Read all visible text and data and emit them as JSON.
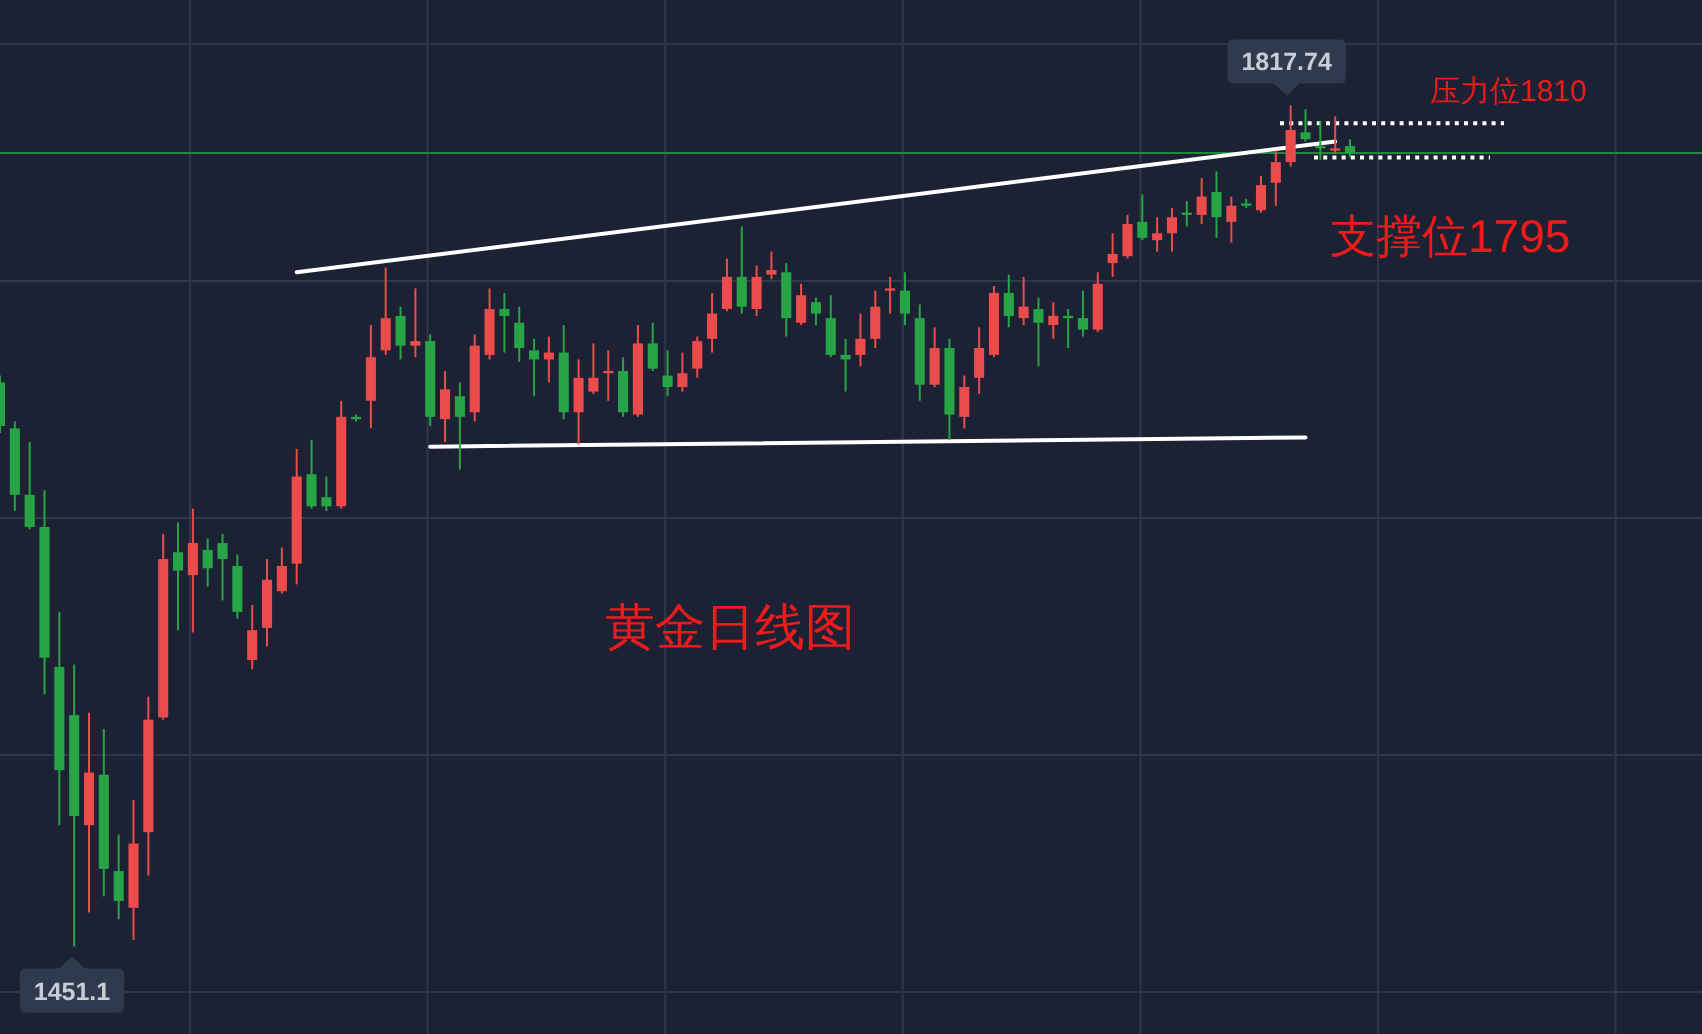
{
  "chart_data": {
    "type": "candlestick",
    "title": "黄金日线图",
    "categories": [
      null,
      null,
      null,
      null,
      null,
      null,
      null,
      null,
      null,
      null,
      null,
      null,
      null,
      null,
      null,
      null,
      null,
      null,
      null,
      null,
      null,
      null,
      null,
      null,
      null,
      null,
      null,
      null,
      null,
      null,
      null,
      null,
      null,
      null,
      null,
      null,
      null,
      null,
      null,
      null,
      null,
      null,
      null,
      null,
      null,
      null,
      null,
      null,
      null,
      null,
      null,
      null,
      null,
      null,
      null,
      null,
      null,
      null,
      null,
      null,
      null,
      null,
      null,
      null,
      null,
      null,
      null,
      null,
      null,
      null,
      null,
      null,
      null,
      null,
      null,
      null,
      null,
      null,
      null,
      null,
      null,
      null,
      null,
      null,
      null,
      null,
      null,
      null,
      null,
      null,
      null,
      null
    ],
    "ohlc": [
      [
        1697,
        1700,
        1675,
        1678
      ],
      [
        1677,
        1680,
        1641,
        1648
      ],
      [
        1648,
        1671,
        1633,
        1634
      ],
      [
        1634,
        1650,
        1561,
        1577
      ],
      [
        1573,
        1597,
        1504,
        1528
      ],
      [
        1552,
        1574,
        1451.1,
        1508
      ],
      [
        1504,
        1553,
        1466,
        1527
      ],
      [
        1526,
        1546,
        1473,
        1485
      ],
      [
        1484,
        1500,
        1463,
        1471
      ],
      [
        1468,
        1515,
        1454,
        1496
      ],
      [
        1501,
        1560,
        1482,
        1550
      ],
      [
        1551,
        1631,
        1550,
        1620
      ],
      [
        1623,
        1636,
        1589,
        1615
      ],
      [
        1613,
        1642,
        1588,
        1627
      ],
      [
        1624,
        1629,
        1608,
        1616
      ],
      [
        1627,
        1631,
        1602,
        1620
      ],
      [
        1617,
        1622,
        1594,
        1597
      ],
      [
        1576,
        1600,
        1572,
        1589
      ],
      [
        1590,
        1620,
        1582,
        1611
      ],
      [
        1606,
        1625,
        1605,
        1617
      ],
      [
        1618,
        1668,
        1609,
        1656
      ],
      [
        1657,
        1672,
        1642,
        1643
      ],
      [
        1647,
        1656,
        1641,
        1643
      ],
      [
        1643,
        1689,
        1642,
        1682
      ],
      [
        1682,
        1683,
        1680,
        1681
      ],
      [
        1689,
        1722,
        1677,
        1708
      ],
      [
        1711,
        1747,
        1709,
        1725
      ],
      [
        1726,
        1730,
        1707,
        1713
      ],
      [
        1713,
        1738,
        1708,
        1715
      ],
      [
        1715,
        1718,
        1678,
        1682
      ],
      [
        1681,
        1702,
        1671,
        1694
      ],
      [
        1691,
        1697,
        1659,
        1682
      ],
      [
        1684,
        1718,
        1680,
        1713
      ],
      [
        1709,
        1738,
        1707,
        1729
      ],
      [
        1729,
        1736,
        1710,
        1726
      ],
      [
        1723,
        1730,
        1706,
        1712
      ],
      [
        1711,
        1716,
        1691,
        1707
      ],
      [
        1707,
        1717,
        1697,
        1710
      ],
      [
        1710,
        1722,
        1681,
        1684
      ],
      [
        1684,
        1707,
        1670,
        1699
      ],
      [
        1693,
        1714,
        1692,
        1699
      ],
      [
        1701,
        1711,
        1689,
        1702
      ],
      [
        1702,
        1708,
        1682,
        1684
      ],
      [
        1683,
        1722,
        1682,
        1714
      ],
      [
        1714,
        1723,
        1702,
        1703
      ],
      [
        1700,
        1711,
        1691,
        1695
      ],
      [
        1695,
        1710,
        1693,
        1701
      ],
      [
        1703,
        1717,
        1699,
        1715
      ],
      [
        1716,
        1736,
        1710,
        1727
      ],
      [
        1729,
        1751,
        1728,
        1743
      ],
      [
        1743,
        1765,
        1727,
        1730
      ],
      [
        1729,
        1748,
        1726,
        1743
      ],
      [
        1744,
        1754,
        1742,
        1746
      ],
      [
        1745,
        1749,
        1717,
        1725
      ],
      [
        1723,
        1740,
        1722,
        1735
      ],
      [
        1732,
        1734,
        1722,
        1727
      ],
      [
        1725,
        1735,
        1708,
        1709
      ],
      [
        1709,
        1716,
        1693,
        1707
      ],
      [
        1709,
        1727,
        1704,
        1716
      ],
      [
        1716,
        1737,
        1712,
        1730
      ],
      [
        1737,
        1743,
        1727,
        1738
      ],
      [
        1737,
        1745,
        1722,
        1727
      ],
      [
        1725,
        1731,
        1689,
        1696
      ],
      [
        1696,
        1721,
        1695,
        1712
      ],
      [
        1712,
        1716,
        1672,
        1683
      ],
      [
        1682,
        1700,
        1677,
        1695
      ],
      [
        1699,
        1721,
        1692,
        1712
      ],
      [
        1709,
        1739,
        1708,
        1736
      ],
      [
        1736,
        1744,
        1721,
        1726
      ],
      [
        1725,
        1743,
        1722,
        1730
      ],
      [
        1729,
        1734,
        1704,
        1723
      ],
      [
        1722,
        1732,
        1716,
        1726
      ],
      [
        1726,
        1729,
        1712,
        1725
      ],
      [
        1725,
        1737,
        1717,
        1720
      ],
      [
        1720,
        1745,
        1719,
        1740
      ],
      [
        1749,
        1762,
        1743,
        1753
      ],
      [
        1752,
        1770,
        1751,
        1766
      ],
      [
        1767,
        1779,
        1759,
        1760
      ],
      [
        1759,
        1769,
        1754,
        1762
      ],
      [
        1762,
        1773,
        1754,
        1769
      ],
      [
        1771,
        1776,
        1765,
        1770
      ],
      [
        1770,
        1786,
        1766,
        1778
      ],
      [
        1780,
        1789,
        1760,
        1769
      ],
      [
        1767,
        1778,
        1758,
        1774
      ],
      [
        1775,
        1777,
        1773,
        1774
      ],
      [
        1772,
        1787,
        1771,
        1783
      ],
      [
        1784,
        1798,
        1774,
        1793
      ],
      [
        1793,
        1817.74,
        1791,
        1807
      ],
      [
        1806,
        1816,
        1802,
        1803
      ],
      [
        1800,
        1811,
        1794,
        1799
      ],
      [
        1798,
        1813,
        1797,
        1799
      ],
      [
        1800,
        1803,
        1795,
        1797
      ]
    ],
    "colors": [
      "#27a445",
      "#27a445",
      "#27a445",
      "#27a445",
      "#27a445",
      "#27a445",
      "#eb4c4b",
      "#27a445",
      "#27a445",
      "#eb4c4b",
      "#eb4c4b",
      "#eb4c4b",
      "#27a445",
      "#eb4c4b",
      "#27a445",
      "#27a445",
      "#27a445",
      "#eb4c4b",
      "#eb4c4b",
      "#eb4c4b",
      "#eb4c4b",
      "#27a445",
      "#27a445",
      "#eb4c4b",
      "#27a445",
      "#eb4c4b",
      "#eb4c4b",
      "#27a445",
      "#eb4c4b",
      "#27a445",
      "#eb4c4b",
      "#27a445",
      "#eb4c4b",
      "#eb4c4b",
      "#27a445",
      "#27a445",
      "#27a445",
      "#eb4c4b",
      "#27a445",
      "#eb4c4b",
      "#eb4c4b",
      "#eb4c4b",
      "#27a445",
      "#eb4c4b",
      "#27a445",
      "#27a445",
      "#eb4c4b",
      "#eb4c4b",
      "#eb4c4b",
      "#eb4c4b",
      "#27a445",
      "#eb4c4b",
      "#eb4c4b",
      "#27a445",
      "#eb4c4b",
      "#27a445",
      "#27a445",
      "#27a445",
      "#eb4c4b",
      "#eb4c4b",
      "#eb4c4b",
      "#27a445",
      "#27a445",
      "#eb4c4b",
      "#27a445",
      "#eb4c4b",
      "#eb4c4b",
      "#eb4c4b",
      "#27a445",
      "#eb4c4b",
      "#27a445",
      "#eb4c4b",
      "#27a445",
      "#27a445",
      "#eb4c4b",
      "#eb4c4b",
      "#eb4c4b",
      "#27a445",
      "#eb4c4b",
      "#eb4c4b",
      "#27a445",
      "#eb4c4b",
      "#27a445",
      "#eb4c4b",
      "#27a445",
      "#eb4c4b",
      "#eb4c4b",
      "#eb4c4b",
      "#27a445",
      "#27a445",
      "#eb4c4b",
      "#27a445"
    ],
    "series": [
      {
        "type": "line",
        "color": "#ffffff",
        "values": [
          null,
          null,
          null,
          null,
          null,
          null,
          null,
          null,
          null,
          null,
          null,
          null,
          null,
          null,
          null,
          null,
          null,
          null,
          null,
          null,
          1745,
          null,
          null,
          null,
          null,
          null,
          null,
          null,
          null,
          null,
          null,
          null,
          null,
          null,
          null,
          null,
          null,
          null,
          null,
          null,
          null,
          null,
          null,
          null,
          null,
          null,
          null,
          null,
          null,
          null,
          null,
          null,
          null,
          null,
          null,
          null,
          null,
          null,
          null,
          null,
          null,
          null,
          null,
          null,
          null,
          null,
          null,
          null,
          null,
          null,
          null,
          null,
          null,
          null,
          null,
          null,
          null,
          null,
          null,
          null,
          null,
          null,
          null,
          null,
          null,
          null,
          null,
          null,
          null,
          null,
          1802,
          null
        ]
      },
      {
        "type": "line",
        "color": "#ffffff",
        "values": [
          null,
          null,
          null,
          null,
          null,
          null,
          null,
          null,
          null,
          null,
          null,
          null,
          null,
          null,
          null,
          null,
          null,
          null,
          null,
          null,
          null,
          null,
          null,
          null,
          null,
          null,
          null,
          null,
          null,
          1669,
          null,
          null,
          null,
          null,
          null,
          null,
          null,
          null,
          null,
          null,
          null,
          null,
          null,
          null,
          null,
          null,
          null,
          null,
          null,
          null,
          null,
          null,
          null,
          null,
          null,
          null,
          null,
          null,
          null,
          null,
          null,
          null,
          null,
          null,
          null,
          null,
          null,
          null,
          null,
          null,
          null,
          null,
          null,
          null,
          null,
          null,
          null,
          null,
          null,
          null,
          null,
          null,
          null,
          null,
          null,
          null,
          null,
          null,
          1673,
          null,
          null,
          null
        ]
      }
    ],
    "ref_lines": [
      {
        "axis": "y",
        "value": 1797,
        "color": "#23863a"
      },
      {
        "axis": "y",
        "value": 1810,
        "label": "压力位1810",
        "color": "#ffffff",
        "line_style": "dotted"
      },
      {
        "axis": "y",
        "value": 1795,
        "label": "支撑位1795",
        "color": "#ffffff",
        "line_style": "dotted"
      }
    ],
    "annotations": [
      {
        "text": "1817.74",
        "y": 1817.74
      },
      {
        "text": "1451.1",
        "y": 1451.1
      }
    ],
    "grid": true
  }
}
